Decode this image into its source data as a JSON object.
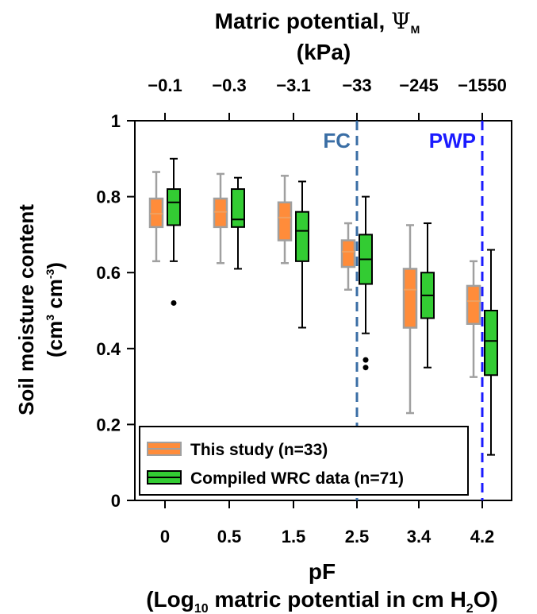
{
  "chart_data": {
    "type": "box",
    "top_axis": {
      "title_line1": "Matric potential, ",
      "title_symbol": "Ψ",
      "title_symbol_sub": "M",
      "title_line2": "(kPa)",
      "tick_labels": [
        "−0.1",
        "−0.3",
        "−3.1",
        "−33",
        "−245",
        "−1550"
      ]
    },
    "x_axis": {
      "label_line1": "pF",
      "label_line2_a": "(Log",
      "label_line2_sub10": "10",
      "label_line2_b": " matric potential in cm H",
      "label_line2_sub2": "2",
      "label_line2_c": "O)",
      "tick_labels": [
        "0",
        "0.5",
        "1.5",
        "2.5",
        "3.4",
        "4.2"
      ]
    },
    "y_axis": {
      "label_line1": "Soil moisture content",
      "label_line2_a": "(cm",
      "label_line2_sup1": "3",
      "label_line2_b": " cm",
      "label_line2_sup2": "-3",
      "label_line2_c": ")",
      "tick_labels": [
        "0",
        "0.2",
        "0.4",
        "0.6",
        "0.8",
        "1"
      ],
      "ylim": [
        0,
        1
      ],
      "ticks": [
        0,
        0.2,
        0.4,
        0.6,
        0.8,
        1.0
      ]
    },
    "reference_lines": [
      {
        "label": "FC",
        "position_category": "2.5",
        "color": "#3a6ea5"
      },
      {
        "label": "PWP",
        "position_category": "4.2",
        "color": "#1a1aff"
      }
    ],
    "series": [
      {
        "name": "This study (n=33)",
        "fill": "#ff8c3a",
        "line": "#a0a0a0",
        "boxes": [
          {
            "whisker_low": 0.63,
            "q1": 0.72,
            "median": 0.755,
            "q3": 0.795,
            "whisker_high": 0.865,
            "outliers": []
          },
          {
            "whisker_low": 0.625,
            "q1": 0.72,
            "median": 0.76,
            "q3": 0.795,
            "whisker_high": 0.86,
            "outliers": []
          },
          {
            "whisker_low": 0.625,
            "q1": 0.685,
            "median": 0.745,
            "q3": 0.785,
            "whisker_high": 0.855,
            "outliers": []
          },
          {
            "whisker_low": 0.555,
            "q1": 0.615,
            "median": 0.655,
            "q3": 0.685,
            "whisker_high": 0.73,
            "outliers": []
          },
          {
            "whisker_low": 0.23,
            "q1": 0.455,
            "median": 0.555,
            "q3": 0.61,
            "whisker_high": 0.725,
            "outliers": []
          },
          {
            "whisker_low": 0.325,
            "q1": 0.465,
            "median": 0.525,
            "q3": 0.565,
            "whisker_high": 0.63,
            "outliers": []
          }
        ]
      },
      {
        "name": "Compiled WRC data (n=71)",
        "fill": "#33cc33",
        "line": "#000000",
        "boxes": [
          {
            "whisker_low": 0.63,
            "q1": 0.725,
            "median": 0.785,
            "q3": 0.82,
            "whisker_high": 0.9,
            "outliers": [
              0.52
            ]
          },
          {
            "whisker_low": 0.61,
            "q1": 0.72,
            "median": 0.74,
            "q3": 0.82,
            "whisker_high": 0.85,
            "outliers": []
          },
          {
            "whisker_low": 0.455,
            "q1": 0.63,
            "median": 0.71,
            "q3": 0.76,
            "whisker_high": 0.84,
            "outliers": []
          },
          {
            "whisker_low": 0.44,
            "q1": 0.57,
            "median": 0.635,
            "q3": 0.7,
            "whisker_high": 0.8,
            "outliers": [
              0.37,
              0.35
            ]
          },
          {
            "whisker_low": 0.35,
            "q1": 0.48,
            "median": 0.54,
            "q3": 0.6,
            "whisker_high": 0.73,
            "outliers": [
              0.11,
              0.1
            ]
          },
          {
            "whisker_low": 0.12,
            "q1": 0.33,
            "median": 0.42,
            "q3": 0.5,
            "whisker_high": 0.66,
            "outliers": []
          }
        ]
      }
    ],
    "legend": {
      "placement": "bottom-left"
    }
  }
}
